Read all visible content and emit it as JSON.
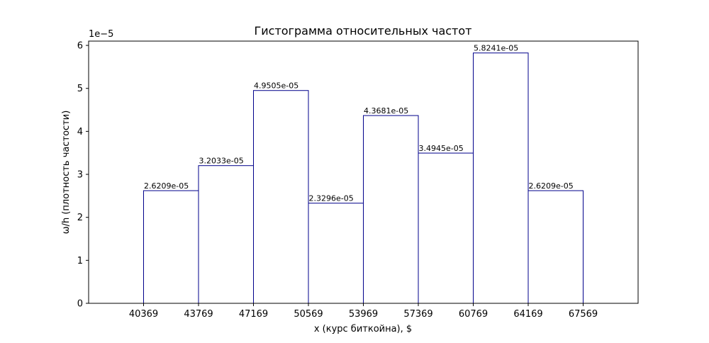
{
  "chart_data": {
    "type": "bar",
    "title": "Гистограмма относительных частот",
    "xlabel": "x (курс биткойна), $",
    "ylabel": "ω/h (плотность частости)",
    "y_offset_label": "1e−5",
    "y_scale": 1e-05,
    "bin_edges": [
      40369,
      43769,
      47169,
      50569,
      53969,
      57369,
      60769,
      64169,
      67569
    ],
    "x_ticks": [
      "40369",
      "43769",
      "47169",
      "50569",
      "53969",
      "57369",
      "60769",
      "64169",
      "67569"
    ],
    "values": [
      2.6209e-05,
      3.2033e-05,
      4.9505e-05,
      2.3296e-05,
      4.3681e-05,
      3.4945e-05,
      5.8241e-05,
      2.6209e-05
    ],
    "value_labels": [
      "2.6209e-05",
      "3.2033e-05",
      "4.9505e-05",
      "2.3296e-05",
      "4.3681e-05",
      "3.4945e-05",
      "5.8241e-05",
      "2.6209e-05"
    ],
    "y_ticks": [
      "0",
      "1",
      "2",
      "3",
      "4",
      "5",
      "6"
    ],
    "xlim": [
      36969,
      70969
    ],
    "ylim": [
      0,
      6.1e-05
    ],
    "grid": false,
    "bar_fill": "#ffffff",
    "bar_edge_color": "#00008b"
  }
}
